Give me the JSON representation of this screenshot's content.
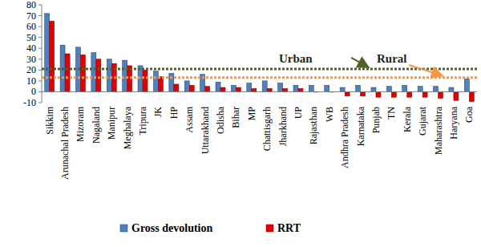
{
  "chart_data": {
    "type": "bar",
    "categories": [
      "Sikkim",
      "Arunachal Pradesh",
      "Mizoram",
      "Nagaland",
      "Manipur",
      "Meghalaya",
      "Tripura",
      "JK",
      "HP",
      "Assam",
      "Uttarakhand",
      "Odisha",
      "Bihar",
      "MP",
      "Chattisgarh",
      "Jharkhand",
      "UP",
      "Rajasthan",
      "WB",
      "Andhra Pradesh",
      "Karnataka",
      "Punjab",
      "TN",
      "Kerala",
      "Gujarat",
      "Maharashtra",
      "Haryana",
      "Goa"
    ],
    "series": [
      {
        "name": "Gross devolution",
        "color": "#4f81bd",
        "values": [
          72,
          43,
          41,
          36,
          30,
          29,
          24,
          19,
          17,
          10,
          16,
          9,
          6,
          8,
          10,
          8,
          6,
          6,
          6,
          4,
          6,
          4,
          5,
          6,
          5,
          5,
          4,
          12
        ]
      },
      {
        "name": "RRT",
        "color": "#e00000",
        "values": [
          65,
          35,
          34,
          30,
          26,
          24,
          20,
          14,
          7,
          6,
          5,
          4,
          4,
          3,
          3,
          3,
          3,
          0,
          0,
          -4,
          -4,
          -5,
          -5,
          -5,
          -5,
          -6,
          -8,
          -9
        ]
      }
    ],
    "reference_lines": [
      {
        "name": "Urban",
        "value": 21,
        "color": "#4f6228",
        "line_style": "dotted"
      },
      {
        "name": "Rural",
        "value": 13,
        "color": "#f79646",
        "line_style": "dotted"
      }
    ],
    "ylim": [
      -10,
      80
    ],
    "yticks": [
      -10,
      0,
      10,
      20,
      30,
      40,
      50,
      60,
      70,
      80
    ],
    "grid": false,
    "legend": "bottom"
  }
}
